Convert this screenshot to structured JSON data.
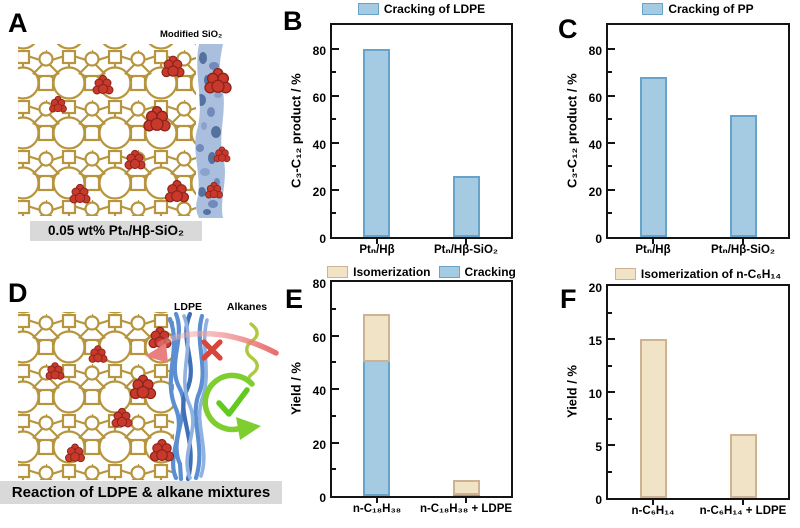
{
  "colors": {
    "blue_fill": "#a5cbe2",
    "blue_border": "#68a3c9",
    "tan_fill": "#f1e3c6",
    "tan_border": "#cdb394",
    "axis": "#141414",
    "framework_gold": "#b6953e",
    "pt_red": "#c8392c",
    "pt_red_dark": "#8c231a",
    "sio2_band": "#a9bfdd",
    "sio2_blob": "#54719f",
    "sio2_blob2": "#7189bb",
    "sio2_blob3": "#8aa2cc",
    "ldpe_blue": "#5c8fd2",
    "ldpe_blue_dark": "#3f6fb5",
    "ldpe_blue_light": "#8fb2e2",
    "alkane_green": "#adc93f",
    "arrow_green": "#7fce2f",
    "check_green": "#62c91f",
    "arrow_red": "#ef8c8c",
    "cross_red": "#d8453a",
    "caption_bg": "#d9d9d9"
  },
  "figure": {
    "panels": {
      "A": {
        "letter": "A",
        "annotation": "Modified SiO₂",
        "caption": "0.05 wt% Ptₙ/Hβ-SiO₂"
      },
      "D": {
        "letter": "D",
        "label_ldpe": "LDPE",
        "label_alkanes": "Alkanes",
        "caption": "Reaction of LDPE & alkane mixtures"
      }
    }
  },
  "chart_data": [
    {
      "panel": "B",
      "type": "bar",
      "legend": [
        {
          "label": "Cracking of LDPE",
          "color": "blue"
        }
      ],
      "categories": [
        "Ptₙ/Hβ",
        "Ptₙ/Hβ-SiO₂"
      ],
      "series": [
        {
          "name": "Cracking of LDPE",
          "color": "blue",
          "values": [
            80,
            26
          ]
        }
      ],
      "ylabel": "C₃-C₁₂ product / %",
      "ylim": [
        0,
        90
      ],
      "yticks": [
        0,
        20,
        40,
        60,
        80
      ],
      "minor_step": 10
    },
    {
      "panel": "C",
      "type": "bar",
      "legend": [
        {
          "label": "Cracking of PP",
          "color": "blue"
        }
      ],
      "categories": [
        "Ptₙ/Hβ",
        "Ptₙ/Hβ-SiO₂"
      ],
      "series": [
        {
          "name": "Cracking of PP",
          "color": "blue",
          "values": [
            68,
            52
          ]
        }
      ],
      "ylabel": "C₃-C₁₂ product / %",
      "ylim": [
        0,
        90
      ],
      "yticks": [
        0,
        20,
        40,
        60,
        80
      ],
      "minor_step": 10
    },
    {
      "panel": "E",
      "type": "stacked-bar",
      "legend": [
        {
          "label": "Isomerization",
          "color": "tan"
        },
        {
          "label": "Cracking",
          "color": "blue"
        }
      ],
      "categories": [
        "n-C₁₈H₃₈",
        "n-C₁₈H₃₈ + LDPE"
      ],
      "series": [
        {
          "name": "Cracking",
          "color": "blue",
          "values": [
            51,
            1
          ]
        },
        {
          "name": "Isomerization",
          "color": "tan",
          "values": [
            17,
            5
          ]
        }
      ],
      "ylabel": "Yield / %",
      "ylim": [
        0,
        80
      ],
      "yticks": [
        0,
        20,
        40,
        60,
        80
      ],
      "minor_step": 10
    },
    {
      "panel": "F",
      "type": "bar",
      "legend": [
        {
          "label": "Isomerization of n-C₆H₁₄",
          "color": "tan"
        }
      ],
      "categories": [
        "n-C₆H₁₄",
        "n-C₆H₁₄ + LDPE"
      ],
      "series": [
        {
          "name": "Isomerization of n-C₆H₁₄",
          "color": "tan",
          "values": [
            15,
            6
          ]
        }
      ],
      "ylabel": "Yield / %",
      "ylim": [
        0,
        20
      ],
      "yticks": [
        0,
        5,
        10,
        15,
        20
      ],
      "minor_step": 2.5
    }
  ]
}
